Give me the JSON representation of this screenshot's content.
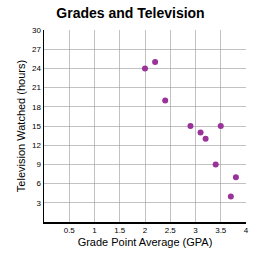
{
  "chart_data": {
    "type": "scatter",
    "title": "Grades and Television",
    "x_label": "Grade Point Average (GPA)",
    "y_label": "Television Watched (hours)",
    "x": [
      2.0,
      2.2,
      2.4,
      2.9,
      3.1,
      3.2,
      3.4,
      3.5,
      3.7,
      3.8
    ],
    "values": [
      24,
      25,
      19,
      15,
      14,
      13,
      9,
      15,
      4,
      7
    ],
    "color": "#993399",
    "marker": "circle",
    "xlim": [
      0,
      4
    ],
    "ylim": [
      0,
      30
    ],
    "xticks": [
      0.5,
      1,
      1.5,
      2,
      2.5,
      3,
      3.5,
      4
    ],
    "yticks": [
      3,
      6,
      9,
      12,
      15,
      18,
      21,
      24,
      27,
      30
    ],
    "grid": true
  }
}
